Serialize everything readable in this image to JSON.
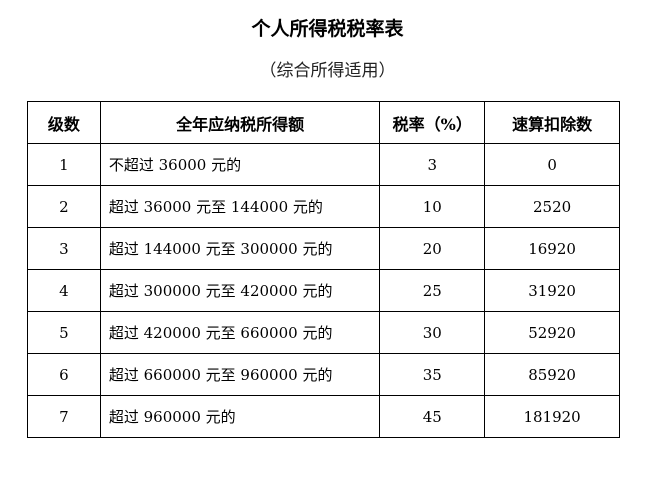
{
  "title": "个人所得税税率表",
  "subtitle": "（综合所得适用）",
  "table": {
    "headers": [
      "级数",
      "全年应纳税所得额",
      "税率（%）",
      "速算扣除数"
    ],
    "rows": [
      [
        "1",
        "不超过 36000 元的",
        "3",
        "0"
      ],
      [
        "2",
        "超过 36000 元至 144000 元的",
        "10",
        "2520"
      ],
      [
        "3",
        "超过 144000 元至 300000 元的",
        "20",
        "16920"
      ],
      [
        "4",
        "超过 300000 元至 420000 元的",
        "25",
        "31920"
      ],
      [
        "5",
        "超过 420000 元至 660000 元的",
        "30",
        "52920"
      ],
      [
        "6",
        "超过 660000 元至 960000 元的",
        "35",
        "85920"
      ],
      [
        "7",
        "超过 960000 元的",
        "45",
        "181920"
      ]
    ]
  }
}
